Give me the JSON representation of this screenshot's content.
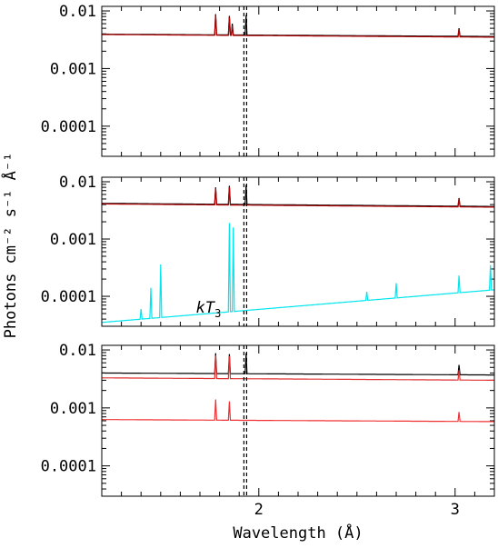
{
  "chart_data": [
    {
      "type": "line",
      "panel": "top",
      "xlim": [
        1.2,
        3.2
      ],
      "ylim": [
        3e-05,
        0.012
      ],
      "yscale": "log",
      "ytick_labels": [
        "0.01",
        "0.001",
        "0.0001"
      ],
      "ytick_values": [
        0.01,
        0.001,
        0.0001
      ],
      "vlines": [
        1.924,
        1.938
      ],
      "series": [
        {
          "color": "#000000",
          "continuum": [
            0.00395,
            0.0036
          ],
          "lines": [
            [
              1.78,
              0.0088
            ],
            [
              1.85,
              0.0082
            ],
            [
              1.865,
              0.006
            ],
            [
              1.935,
              0.0085
            ],
            [
              3.02,
              0.005
            ]
          ]
        },
        {
          "color": "#b00000",
          "continuum": [
            0.0039,
            0.0035
          ],
          "lines": [
            [
              1.78,
              0.0085
            ],
            [
              1.85,
              0.0078
            ],
            [
              1.865,
              0.0055
            ],
            [
              3.02,
              0.0048
            ]
          ]
        }
      ]
    },
    {
      "type": "line",
      "panel": "middle",
      "xlim": [
        1.2,
        3.2
      ],
      "ylim": [
        3e-05,
        0.012
      ],
      "yscale": "log",
      "ytick_labels": [
        "0.01",
        "0.001",
        "0.0001"
      ],
      "ytick_values": [
        0.01,
        0.001,
        0.0001
      ],
      "vlines": [
        1.924,
        1.938
      ],
      "annotation": {
        "text": "kT",
        "subscript": "3",
        "x": 1.68,
        "y": 6e-05
      },
      "series": [
        {
          "color": "#000000",
          "continuum": [
            0.0042,
            0.0037
          ],
          "lines": [
            [
              1.78,
              0.008
            ],
            [
              1.85,
              0.0085
            ],
            [
              1.935,
              0.0088
            ],
            [
              3.02,
              0.0052
            ]
          ]
        },
        {
          "color": "#b00000",
          "continuum": [
            0.0041,
            0.0036
          ],
          "lines": [
            [
              1.78,
              0.0077
            ],
            [
              1.85,
              0.008
            ],
            [
              3.02,
              0.005
            ]
          ]
        },
        {
          "color": "#00e5ee",
          "continuum": [
            3.5e-05,
            0.00013
          ],
          "lines": [
            [
              1.4,
              6e-05
            ],
            [
              1.45,
              0.00014
            ],
            [
              1.5,
              0.00036
            ],
            [
              1.85,
              0.0019
            ],
            [
              1.87,
              0.0016
            ],
            [
              2.55,
              0.00012
            ],
            [
              2.7,
              0.00017
            ],
            [
              3.02,
              0.00023
            ],
            [
              3.18,
              0.00035
            ]
          ]
        }
      ]
    },
    {
      "type": "line",
      "panel": "bottom",
      "xlim": [
        1.2,
        3.2
      ],
      "ylim": [
        3e-05,
        0.012
      ],
      "yscale": "log",
      "ytick_labels": [
        "0.01",
        "0.001",
        "0.0001"
      ],
      "ytick_values": [
        0.01,
        0.001,
        0.0001
      ],
      "xtick_labels": [
        "2",
        "3"
      ],
      "xtick_values": [
        2,
        3
      ],
      "xlabel": "Wavelength (Å)",
      "vlines": [
        1.924,
        1.938
      ],
      "series": [
        {
          "color": "#000000",
          "continuum": [
            0.004,
            0.0037
          ],
          "lines": [
            [
              1.78,
              0.0088
            ],
            [
              1.85,
              0.0085
            ],
            [
              1.935,
              0.0088
            ],
            [
              3.02,
              0.0055
            ]
          ]
        },
        {
          "color": "#e03030",
          "continuum": [
            0.0033,
            0.003
          ],
          "lines": [
            [
              1.78,
              0.008
            ],
            [
              1.85,
              0.0078
            ],
            [
              3.02,
              0.0045
            ]
          ]
        },
        {
          "color": "#f03030",
          "continuum": [
            0.00063,
            0.00058
          ],
          "lines": [
            [
              1.78,
              0.0014
            ],
            [
              1.85,
              0.0013
            ],
            [
              3.02,
              0.00085
            ]
          ]
        }
      ]
    }
  ],
  "ylabel": "Photons cm⁻² s⁻¹ Å⁻¹"
}
